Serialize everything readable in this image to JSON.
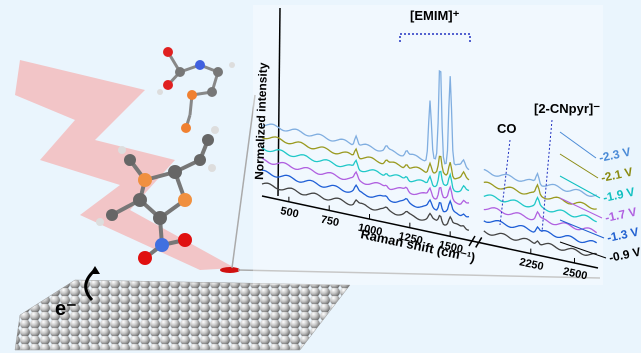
{
  "labels": {
    "emim": "[EMIM]⁺",
    "co": "CO",
    "cnpyr": "[2-CNpyr]⁻",
    "y_axis": "Normalized intensity",
    "x_axis": "Raman shift (cm⁻¹)",
    "electron": "e⁻"
  },
  "x_ticks": [
    500,
    750,
    1000,
    1250,
    1500,
    2250,
    2500
  ],
  "potentials": [
    "-2.3 V",
    "-2.1 V",
    "-1.9 V",
    "-1.7 V",
    "-1.3 V",
    "-0.9 V"
  ]
}
